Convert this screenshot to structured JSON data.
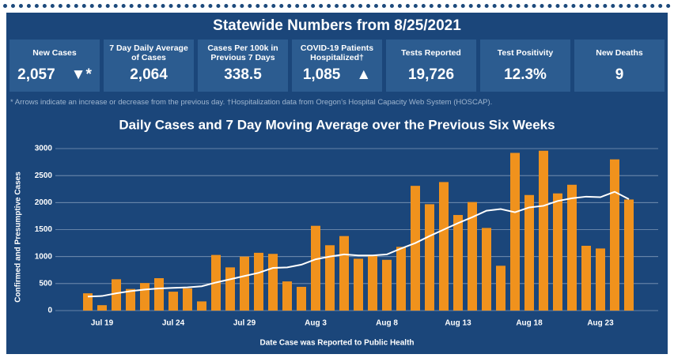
{
  "header": {
    "title": "Statewide Numbers from 8/25/2021"
  },
  "tiles": [
    {
      "label": "New Cases",
      "value": "2,057",
      "indicator": "▼*"
    },
    {
      "label": "7 Day Daily Average of Cases",
      "value": "2,064"
    },
    {
      "label": "Cases Per 100k in Previous 7 Days",
      "value": "338.5"
    },
    {
      "label": "COVID-19 Patients Hospitalized†",
      "value": "1,085",
      "indicator": "▲"
    },
    {
      "label": "Tests Reported",
      "value": "19,726"
    },
    {
      "label": "Test Positivity",
      "value": "12.3%"
    },
    {
      "label": "New Deaths",
      "value": "9"
    }
  ],
  "footnote": "* Arrows indicate an increase or decrease from the previous day. †Hospitalization data from Oregon’s Hospital Capacity Web System (HOSCAP).",
  "chart_data": {
    "type": "bar",
    "title": "Daily Cases and 7 Day Moving Average over the Previous Six Weeks",
    "x_label": "Date Case was Reported to Public Health",
    "y_label": "Confirmed and Presumptive Cases",
    "categories": [
      null,
      "Jul 19",
      null,
      null,
      null,
      null,
      "Jul 24",
      null,
      null,
      null,
      null,
      "Jul 29",
      null,
      null,
      null,
      null,
      "Aug 3",
      null,
      null,
      null,
      null,
      "Aug 8",
      null,
      null,
      null,
      null,
      "Aug 13",
      null,
      null,
      null,
      null,
      "Aug 18",
      null,
      null,
      null,
      null,
      "Aug 23",
      null,
      null
    ],
    "series": [
      {
        "type": "bar",
        "color": "#f0921d",
        "values": [
          320,
          100,
          580,
          400,
          510,
          600,
          350,
          410,
          170,
          1030,
          800,
          1000,
          1070,
          1050,
          540,
          440,
          1570,
          1210,
          1380,
          960,
          1020,
          940,
          1180,
          2310,
          1970,
          2380,
          1770,
          2010,
          1530,
          830,
          2920,
          2140,
          2960,
          2170,
          2330,
          1200,
          1150,
          2800,
          2057
        ]
      },
      {
        "type": "line",
        "color": "#ffffff",
        "values": [
          260,
          270,
          320,
          360,
          390,
          410,
          420,
          430,
          450,
          520,
          580,
          640,
          700,
          790,
          800,
          850,
          950,
          1000,
          1040,
          1020,
          1020,
          1040,
          1150,
          1250,
          1380,
          1500,
          1620,
          1730,
          1850,
          1880,
          1820,
          1910,
          1940,
          2030,
          2080,
          2110,
          2100,
          2200,
          2064
        ]
      }
    ],
    "ylim": [
      0,
      3000
    ],
    "yticks": [
      0,
      500,
      1000,
      1500,
      2000,
      2500,
      3000
    ],
    "grid": true
  }
}
